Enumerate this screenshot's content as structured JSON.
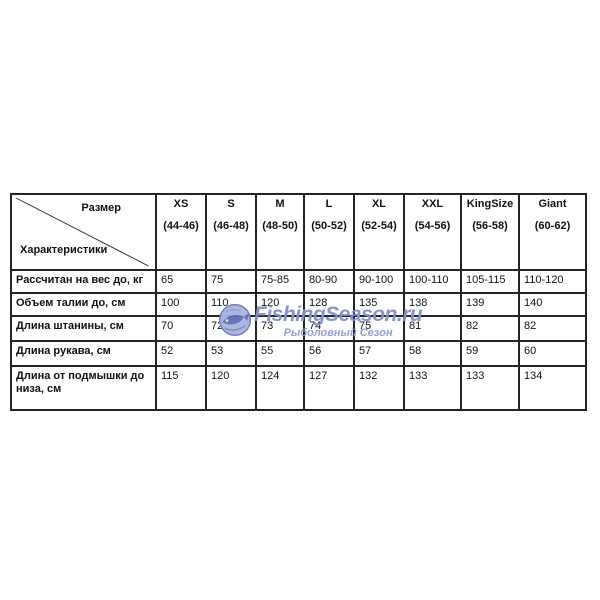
{
  "table": {
    "corner": {
      "top_label": "Размер",
      "bottom_label": "Характеристики"
    },
    "columns": [
      {
        "label": "XS",
        "range": "(44-46)"
      },
      {
        "label": "S",
        "range": "(46-48)"
      },
      {
        "label": "M",
        "range": "(48-50)"
      },
      {
        "label": "L",
        "range": "(50-52)"
      },
      {
        "label": "XL",
        "range": "(52-54)"
      },
      {
        "label": "XXL",
        "range": "(54-56)"
      },
      {
        "label": "KingSize",
        "range": "(56-58)"
      },
      {
        "label": "Giant",
        "range": "(60-62)"
      }
    ],
    "rows": [
      {
        "label": "Рассчитан на вес до, кг",
        "values": [
          "65",
          "75",
          "75-85",
          "80-90",
          "90-100",
          "100-110",
          "105-115",
          "110-120"
        ]
      },
      {
        "label": "Объем талии до, см",
        "values": [
          "100",
          "110",
          "120",
          "128",
          "135",
          "138",
          "139",
          "140"
        ]
      },
      {
        "label": "Длина штанины, см",
        "values": [
          "70",
          "72",
          "73",
          "74",
          "75",
          "81",
          "82",
          "82"
        ]
      },
      {
        "label": "Длина рукава, см",
        "values": [
          "52",
          "53",
          "55",
          "56",
          "57",
          "58",
          "59",
          "60"
        ]
      },
      {
        "label": "Длина от подмышки до низа, см",
        "values": [
          "115",
          "120",
          "124",
          "127",
          "132",
          "133",
          "133",
          "134"
        ]
      }
    ]
  },
  "watermark": {
    "brand": "FishingSeason.ru",
    "tagline": "Рыболовный Сезон",
    "icon": "globe-fish-icon",
    "color": "#8290ca"
  }
}
